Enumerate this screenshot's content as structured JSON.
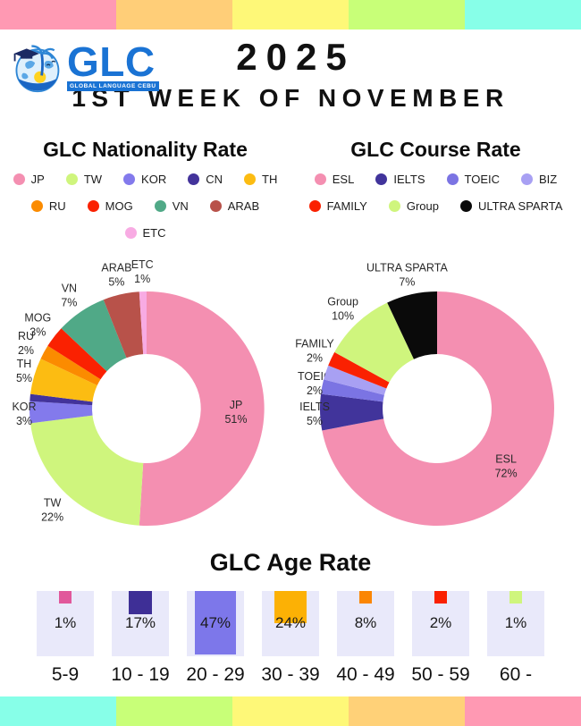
{
  "page": {
    "top_strip_colors": [
      "#FF99B3",
      "#FFCE78",
      "#FEF878",
      "#C8FF78",
      "#87FFE8"
    ],
    "bottom_strip_colors": [
      "#87FFE8",
      "#C8FF78",
      "#FEF878",
      "#FFD178",
      "#FF99B3"
    ]
  },
  "header": {
    "logo_text": "GLC",
    "logo_subtext": "GLOBAL LANGUAGE CEBU",
    "logo_color": "#1A73D4",
    "year": "2025",
    "subtitle": "1ST WEEK OF NOVEMBER"
  },
  "chart_data": [
    {
      "type": "pie",
      "donut": true,
      "title": "GLC Nationality Rate",
      "slices": [
        {
          "label": "JP",
          "value": 51,
          "color": "#F48FB1",
          "label_placement": "inside"
        },
        {
          "label": "TW",
          "value": 22,
          "color": "#CFF57D"
        },
        {
          "label": "KOR",
          "value": 3,
          "color": "#837AEC"
        },
        {
          "label": "CN",
          "value": 1,
          "color": "#43339B",
          "label_visible": false
        },
        {
          "label": "TH",
          "value": 5,
          "color": "#FCBC12"
        },
        {
          "label": "RU",
          "value": 2,
          "color": "#FB8B00"
        },
        {
          "label": "MOG",
          "value": 3,
          "color": "#FA2101"
        },
        {
          "label": "VN",
          "value": 7,
          "color": "#50A987"
        },
        {
          "label": "ARAB",
          "value": 5,
          "color": "#B8524A"
        },
        {
          "label": "ETC",
          "value": 1,
          "color": "#F8ABE3"
        }
      ],
      "legend_rows": [
        [
          "JP",
          "TW",
          "KOR",
          "CN",
          "TH"
        ],
        [
          "RU",
          "MOG",
          "VN",
          "ARAB"
        ],
        [
          "ETC"
        ]
      ]
    },
    {
      "type": "pie",
      "donut": true,
      "title": "GLC Course Rate",
      "slices": [
        {
          "label": "ESL",
          "value": 72,
          "color": "#F48FB1",
          "label_placement": "inside"
        },
        {
          "label": "IELTS",
          "value": 5,
          "color": "#41349B"
        },
        {
          "label": "TOEIC",
          "value": 2,
          "color": "#7B74E3"
        },
        {
          "label": "BIZ",
          "value": 2,
          "color": "#A8A0F3",
          "label_visible": false
        },
        {
          "label": "FAMILY",
          "value": 2,
          "color": "#FA2101"
        },
        {
          "label": "Group",
          "value": 10,
          "color": "#CFF57D"
        },
        {
          "label": "ULTRA SPARTA",
          "value": 7,
          "color": "#0A0A0A"
        }
      ],
      "legend_rows": [
        [
          "ESL",
          "IELTS",
          "TOEIC",
          "BIZ"
        ],
        [
          "FAMILY",
          "Group",
          "ULTRA SPARTA"
        ]
      ]
    },
    {
      "type": "bar",
      "title": "GLC Age Rate",
      "categories": [
        "5-9",
        "10 - 19",
        "20 - 29",
        "30 - 39",
        "40 - 49",
        "50 - 59",
        "60 -"
      ],
      "values": [
        1,
        17,
        47,
        24,
        8,
        2,
        1
      ],
      "colors": [
        "#E1589B",
        "#3E2F96",
        "#7D77EA",
        "#FCB105",
        "#FB8604",
        "#FA2101",
        "#CFF57D"
      ],
      "box_background": "#E9E9FA",
      "value_suffix": "%"
    }
  ]
}
